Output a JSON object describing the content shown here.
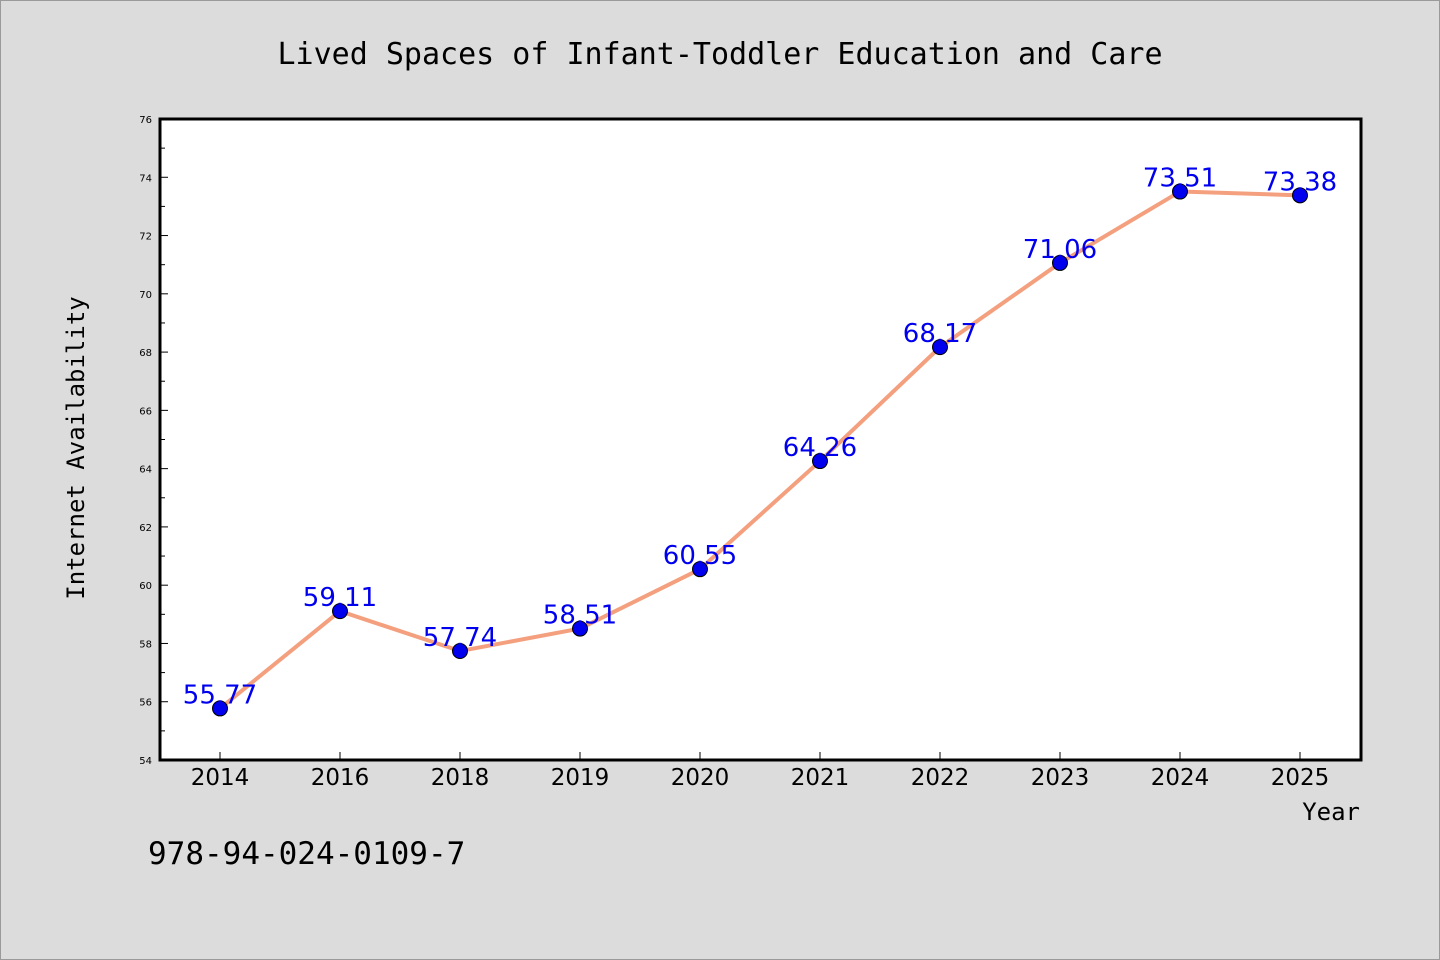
{
  "chart_data": {
    "type": "line",
    "title": "Lived Spaces of Infant-Toddler Education and Care",
    "xlabel": "Year",
    "ylabel": "Internet Availability",
    "categories": [
      "2014",
      "2016",
      "2018",
      "2019",
      "2020",
      "2021",
      "2022",
      "2023",
      "2024",
      "2025"
    ],
    "series": [
      {
        "values": [
          55.77,
          59.11,
          57.74,
          58.51,
          60.55,
          64.26,
          68.17,
          71.06,
          73.51,
          73.38
        ]
      }
    ],
    "data_labels": [
      "55.77",
      "59.11",
      "57.74",
      "58.51",
      "60.55",
      "64.26",
      "68.17",
      "71.06",
      "73.51",
      "73.38"
    ],
    "ylim": [
      54,
      76
    ],
    "yticks": [
      54,
      56,
      58,
      60,
      62,
      64,
      66,
      68,
      70,
      72,
      74,
      76
    ],
    "grid": false,
    "line_color": "#f4a07e",
    "marker_color": "#0000ee",
    "label_color": "#0000ee",
    "background_color": "#dcdcdc",
    "plot_background_color": "#ffffff"
  },
  "footer": {
    "code": "978-94-024-0109-7"
  }
}
